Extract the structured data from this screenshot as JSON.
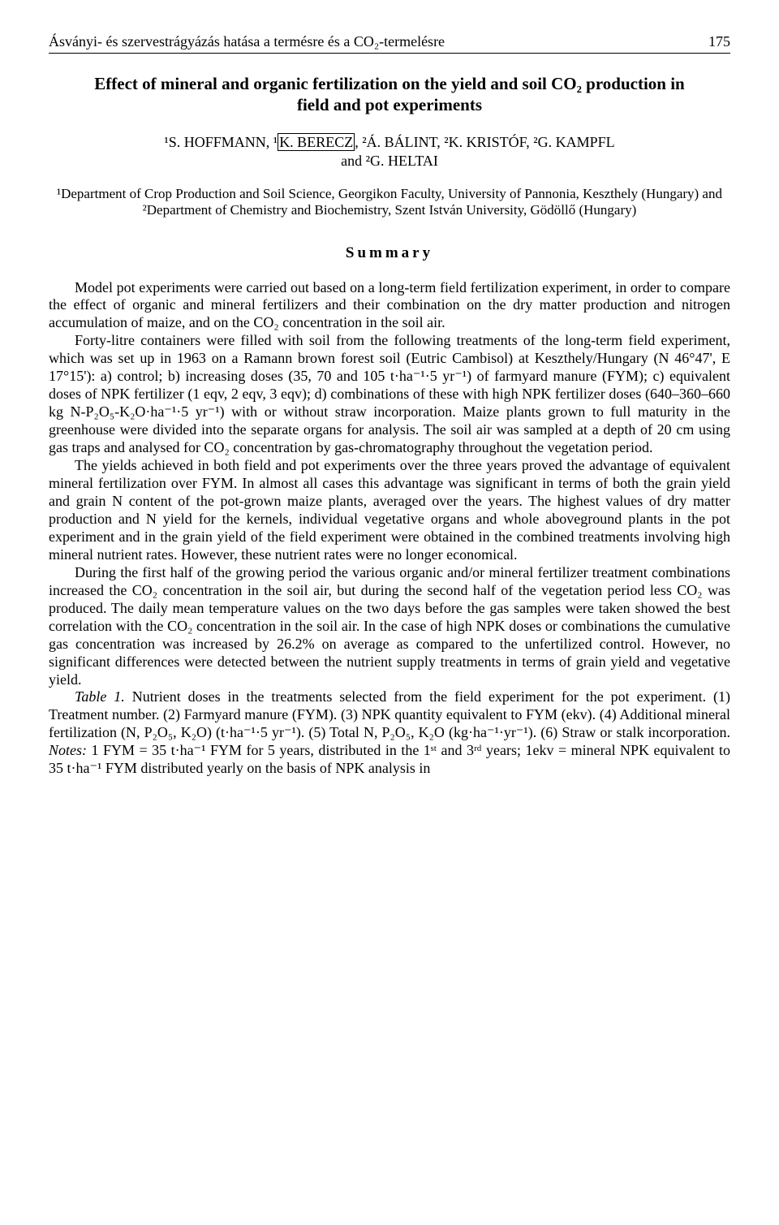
{
  "header": {
    "running_title": "Ásványi- és szervestrágyázás hatása a termésre és a CO₂-termelésre",
    "page_number": "175"
  },
  "article": {
    "title": "Effect of mineral and organic fertilization on the yield and soil CO₂ production in field and pot experiments",
    "authors_line1_prefix": "¹S. HOFFMANN, ¹",
    "authors_boxed": "K. BERECZ",
    "authors_line1_suffix": ", ²Á. BÁLINT, ²K. KRISTÓF, ²G. KAMPFL",
    "authors_line2": "and ²G. HELTAI",
    "affiliation": "¹Department of Crop Production and Soil Science, Georgikon Faculty, University of Pannonia, Keszthely (Hungary) and ²Department of Chemistry and Biochemistry, Szent István University, Gödöllő (Hungary)",
    "summary_heading": "Summary"
  },
  "paragraphs": {
    "p1": "Model pot experiments were carried out based on a long-term field fertilization experiment, in order to compare the effect of organic and mineral fertilizers and their combination on the dry matter production and nitrogen accumulation of maize, and on the CO₂ concentration in the soil air.",
    "p2": "Forty-litre containers were filled with soil from the following treatments of the long-term field experiment, which was set up in 1963 on a Ramann brown forest soil (Eutric Cambisol) at Keszthely/Hungary (N 46°47', E 17°15'): a) control; b) increasing doses (35, 70 and 105 t·ha⁻¹·5 yr⁻¹) of farmyard manure (FYM); c) equivalent doses of NPK fertilizer (1 eqv, 2 eqv, 3 eqv); d) combinations of these with high NPK fertilizer doses (640–360–660 kg N-P₂O₅-K₂O·ha⁻¹·5 yr⁻¹) with or without straw incorporation. Maize plants grown to full maturity in the greenhouse were divided into the separate organs for analysis. The soil air was sampled at a depth of 20 cm using gas traps and analysed for CO₂ concentration by gas-chromatography throughout the vegetation period.",
    "p3": "The yields achieved in both field and pot experiments over the three years proved the advantage of equivalent mineral fertilization over FYM. In almost all cases this advantage was significant in terms of both the grain yield and grain N content of the pot-grown maize plants, averaged over the years. The highest values of dry matter production and N yield for the kernels, individual vegetative organs and whole aboveground plants in the pot experiment and in the grain yield of the field experiment were obtained in the combined treatments involving high mineral nutrient rates. However, these nutrient rates were no longer economical.",
    "p4": "During the first half of the growing period the various organic and/or mineral fertilizer treatment combinations increased the CO₂ concentration in the soil air, but during the second half of the vegetation period less CO₂ was produced. The daily mean temperature values on the two days before the gas samples were taken showed the best correlation with the CO₂ concentration in the soil air. In the case of high NPK doses or combinations the cumulative gas concentration was increased by 26.2% on average as compared to the unfertilized control. However, no significant differences were detected between the nutrient supply treatments in terms of grain yield and vegetative yield.",
    "p5_label": "Table 1.",
    "p5_rest": " Nutrient doses in the treatments selected from the field experiment for the pot experiment. (1) Treatment number. (2) Farmyard manure (FYM). (3) NPK quantity equivalent to FYM (ekv). (4) Additional mineral fertilization (N, P₂O₅, K₂O) (t·ha⁻¹·5 yr⁻¹). (5) Total N, P₂O₅, K₂O (kg·ha⁻¹·yr⁻¹). (6) Straw or stalk incorporation. ",
    "p5_notes_label": "Notes:",
    "p5_notes": " 1 FYM = 35 t·ha⁻¹ FYM for 5 years, distributed in the 1ˢᵗ and 3ʳᵈ years; 1ekv = mineral NPK equivalent to 35 t·ha⁻¹ FYM distributed yearly on the basis of NPK analysis in"
  }
}
